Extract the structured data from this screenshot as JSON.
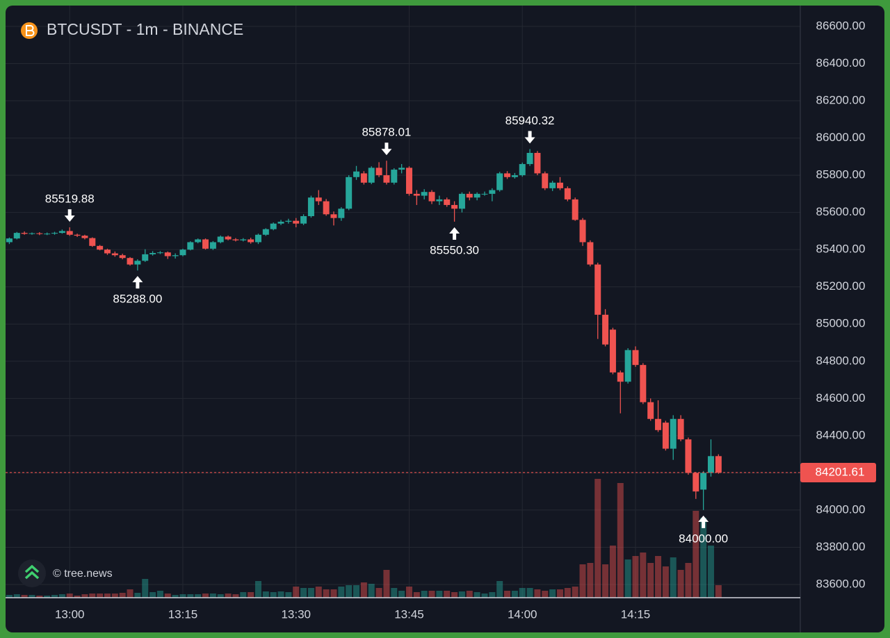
{
  "chart_data": {
    "type": "candlestick",
    "title": "BTCUSDT - 1m - BINANCE",
    "watermark": "© tree.news",
    "up_color": "#26a69a",
    "down_color": "#ef5350",
    "grid": true,
    "x": [
      "12:52",
      "12:53",
      "12:54",
      "12:55",
      "12:56",
      "12:57",
      "12:58",
      "12:59",
      "13:00",
      "13:01",
      "13:02",
      "13:03",
      "13:04",
      "13:05",
      "13:06",
      "13:07",
      "13:08",
      "13:09",
      "13:10",
      "13:11",
      "13:12",
      "13:13",
      "13:14",
      "13:15",
      "13:16",
      "13:17",
      "13:18",
      "13:19",
      "13:20",
      "13:21",
      "13:22",
      "13:23",
      "13:24",
      "13:25",
      "13:26",
      "13:27",
      "13:28",
      "13:29",
      "13:30",
      "13:31",
      "13:32",
      "13:33",
      "13:34",
      "13:35",
      "13:36",
      "13:37",
      "13:38",
      "13:39",
      "13:40",
      "13:41",
      "13:42",
      "13:43",
      "13:44",
      "13:45",
      "13:46",
      "13:47",
      "13:48",
      "13:49",
      "13:50",
      "13:51",
      "13:52",
      "13:53",
      "13:54",
      "13:55",
      "13:56",
      "13:57",
      "13:58",
      "13:59",
      "14:00",
      "14:01",
      "14:02",
      "14:03",
      "14:04",
      "14:05",
      "14:06",
      "14:07",
      "14:08",
      "14:09",
      "14:10",
      "14:11",
      "14:12",
      "14:13",
      "14:14",
      "14:15",
      "14:16",
      "14:17",
      "14:18",
      "14:19",
      "14:20",
      "14:21",
      "14:22",
      "14:23",
      "14:24",
      "14:25",
      "14:26"
    ],
    "open": [
      85440,
      85460,
      85490,
      85485,
      85488,
      85484,
      85486,
      85490,
      85500,
      85480,
      85475,
      85462,
      85420,
      85400,
      85380,
      85370,
      85355,
      85320,
      85340,
      85375,
      85382,
      85385,
      85365,
      85370,
      85400,
      85440,
      85455,
      85405,
      85440,
      85470,
      85455,
      85450,
      85455,
      85440,
      85480,
      85510,
      85540,
      85550,
      85555,
      85540,
      85580,
      85680,
      85660,
      85590,
      85570,
      85620,
      85790,
      85810,
      85760,
      85840,
      85800,
      85760,
      85830,
      85840,
      85700,
      85690,
      85710,
      85660,
      85670,
      85640,
      85620,
      85700,
      85680,
      85700,
      85700,
      85720,
      85810,
      85790,
      85800,
      85860,
      85920,
      85810,
      85730,
      85760,
      85730,
      85670,
      85560,
      85440,
      85320,
      85050,
      84970,
      84740,
      84690,
      84860,
      84780,
      84580,
      84490,
      84470,
      84330,
      84490,
      84380,
      84200,
      84110,
      84200,
      84290
    ],
    "high": [
      85465,
      85495,
      85498,
      85492,
      85494,
      85492,
      85496,
      85508,
      85519.88,
      85486,
      85480,
      85466,
      85425,
      85405,
      85390,
      85378,
      85360,
      85348,
      85402,
      85392,
      85392,
      85390,
      85380,
      85405,
      85445,
      85460,
      85460,
      85446,
      85476,
      85476,
      85462,
      85462,
      85464,
      85486,
      85515,
      85546,
      85560,
      85566,
      85570,
      85590,
      85690,
      85720,
      85672,
      85605,
      85628,
      85800,
      85850,
      85822,
      85848,
      85870,
      85878.01,
      85838,
      85860,
      85848,
      85720,
      85725,
      85720,
      85690,
      85680,
      85660,
      85708,
      85712,
      85708,
      85712,
      85730,
      85818,
      85822,
      85812,
      85868,
      85940.32,
      85930,
      85820,
      85770,
      85790,
      85740,
      85680,
      85570,
      85450,
      85330,
      85080,
      84980,
      84750,
      84870,
      84880,
      84790,
      84600,
      84590,
      84480,
      84510,
      84510,
      84390,
      84205,
      84210,
      84380,
      84300
    ],
    "low": [
      85430,
      85455,
      85480,
      85480,
      85478,
      85478,
      85480,
      85486,
      85474,
      85468,
      85455,
      85415,
      85396,
      85372,
      85362,
      85348,
      85314,
      85288,
      85334,
      85368,
      85376,
      85350,
      85352,
      85364,
      85396,
      85434,
      85400,
      85398,
      85434,
      85450,
      85444,
      85444,
      85432,
      85430,
      85474,
      85504,
      85532,
      85540,
      85520,
      85532,
      85572,
      85640,
      85582,
      85530,
      85555,
      85612,
      85775,
      85750,
      85752,
      85790,
      85750,
      85750,
      85810,
      85690,
      85640,
      85670,
      85645,
      85640,
      85630,
      85550.3,
      85600,
      85665,
      85665,
      85690,
      85660,
      85712,
      85780,
      85782,
      85792,
      85850,
      85800,
      85720,
      85715,
      85720,
      85660,
      85555,
      85420,
      85310,
      84920,
      84880,
      84730,
      84520,
      84680,
      84770,
      84570,
      84480,
      84420,
      84320,
      84270,
      84370,
      84190,
      84060,
      84000,
      84180,
      84195
    ],
    "close": [
      85460,
      85490,
      85485,
      85488,
      85484,
      85486,
      85490,
      85500,
      85480,
      85475,
      85462,
      85420,
      85400,
      85380,
      85370,
      85355,
      85320,
      85340,
      85375,
      85382,
      85385,
      85365,
      85370,
      85400,
      85440,
      85455,
      85405,
      85440,
      85470,
      85455,
      85450,
      85455,
      85440,
      85480,
      85510,
      85540,
      85550,
      85555,
      85540,
      85580,
      85680,
      85660,
      85590,
      85570,
      85620,
      85790,
      85820,
      85760,
      85840,
      85800,
      85760,
      85830,
      85840,
      85700,
      85690,
      85710,
      85660,
      85670,
      85640,
      85620,
      85700,
      85680,
      85700,
      85700,
      85720,
      85810,
      85790,
      85800,
      85860,
      85920,
      85810,
      85730,
      85760,
      85730,
      85670,
      85560,
      85440,
      85320,
      85050,
      84890,
      84740,
      84690,
      84860,
      84780,
      84580,
      84490,
      84430,
      84330,
      84490,
      84380,
      84200,
      84100,
      84200,
      84290,
      84201.61
    ],
    "volume": [
      4,
      5,
      4,
      4,
      3,
      3,
      4,
      5,
      6,
      3,
      5,
      6,
      6,
      6,
      6,
      7,
      12,
      7,
      27,
      8,
      10,
      6,
      4,
      5,
      5,
      5,
      6,
      6,
      5,
      6,
      5,
      8,
      8,
      24,
      9,
      8,
      9,
      8,
      16,
      14,
      14,
      16,
      12,
      12,
      16,
      18,
      18,
      22,
      20,
      14,
      40,
      14,
      10,
      16,
      8,
      10,
      10,
      10,
      10,
      8,
      9,
      10,
      8,
      6,
      8,
      24,
      10,
      10,
      14,
      14,
      12,
      10,
      12,
      12,
      14,
      16,
      48,
      50,
      171,
      48,
      75,
      165,
      55,
      60,
      65,
      50,
      60,
      45,
      58,
      40,
      50,
      125,
      115,
      75,
      18
    ],
    "ylim": [
      83529,
      86712
    ],
    "yticks": [
      {
        "value": 83600,
        "label": "83600.00"
      },
      {
        "value": 83800,
        "label": "83800.00"
      },
      {
        "value": 84000,
        "label": "84000.00"
      },
      {
        "value": 84200,
        "label": "84200.00"
      },
      {
        "value": 84400,
        "label": "84400.00"
      },
      {
        "value": 84600,
        "label": "84600.00"
      },
      {
        "value": 84800,
        "label": "84800.00"
      },
      {
        "value": 85000,
        "label": "85000.00"
      },
      {
        "value": 85200,
        "label": "85200.00"
      },
      {
        "value": 85400,
        "label": "85400.00"
      },
      {
        "value": 85600,
        "label": "85600.00"
      },
      {
        "value": 85800,
        "label": "85800.00"
      },
      {
        "value": 86000,
        "label": "86000.00"
      },
      {
        "value": 86200,
        "label": "86200.00"
      },
      {
        "value": 86400,
        "label": "86400.00"
      },
      {
        "value": 86600,
        "label": "86600.00"
      }
    ],
    "xticks": [
      "13:00",
      "13:15",
      "13:30",
      "13:45",
      "14:00",
      "14:15"
    ],
    "markers": [
      {
        "x": "13:00",
        "position": "above",
        "value": 85519.88,
        "label": "85519.88"
      },
      {
        "x": "13:09",
        "position": "below",
        "value": 85288,
        "label": "85288.00"
      },
      {
        "x": "13:42",
        "position": "above",
        "value": 85878.01,
        "label": "85878.01"
      },
      {
        "x": "13:51",
        "position": "below",
        "value": 85550.3,
        "label": "85550.30"
      },
      {
        "x": "14:01",
        "position": "above",
        "value": 85940.32,
        "label": "85940.32"
      },
      {
        "x": "14:24",
        "position": "below",
        "value": 84000,
        "label": "84000.00"
      }
    ],
    "last_price": {
      "value": 84201.61,
      "label": "84201.61"
    }
  }
}
